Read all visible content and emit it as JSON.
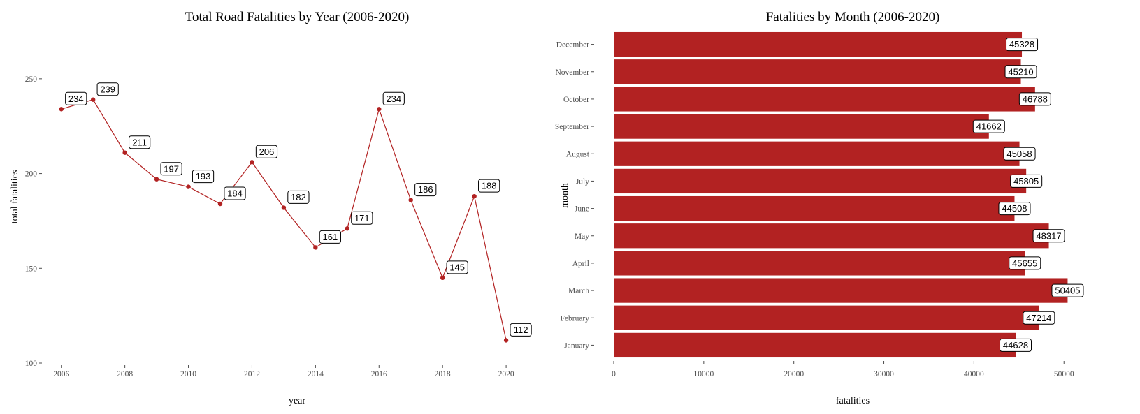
{
  "chart_data": [
    {
      "type": "line",
      "title": "Total Road Fatalities by Year (2006-2020)",
      "xlabel": "year",
      "ylabel": "total fatalities",
      "x": [
        2006,
        2007,
        2008,
        2009,
        2010,
        2011,
        2012,
        2013,
        2014,
        2015,
        2016,
        2017,
        2018,
        2019,
        2020
      ],
      "values": [
        234,
        239,
        211,
        197,
        193,
        184,
        206,
        182,
        161,
        171,
        234,
        186,
        145,
        188,
        112
      ],
      "xticks": [
        2006,
        2008,
        2010,
        2012,
        2014,
        2016,
        2018,
        2020
      ],
      "yticks": [
        100,
        150,
        200,
        250
      ],
      "xlim": [
        2005.5,
        2020.9
      ],
      "ylim": [
        100,
        275
      ],
      "color": "#b22222",
      "grid": false,
      "data_labels": true
    },
    {
      "type": "bar",
      "orientation": "horizontal",
      "title": "Fatalities by Month (2006-2020)",
      "xlabel": "fatalities",
      "ylabel": "month",
      "categories": [
        "January",
        "February",
        "March",
        "April",
        "May",
        "June",
        "July",
        "August",
        "September",
        "October",
        "November",
        "December"
      ],
      "values": [
        44628,
        47214,
        50405,
        45655,
        48317,
        44508,
        45805,
        45058,
        41662,
        46788,
        45210,
        45328
      ],
      "xticks": [
        0,
        10000,
        20000,
        30000,
        40000,
        50000
      ],
      "xlim": [
        0,
        52000
      ],
      "color": "#b22222",
      "grid": false,
      "data_labels": true
    }
  ]
}
